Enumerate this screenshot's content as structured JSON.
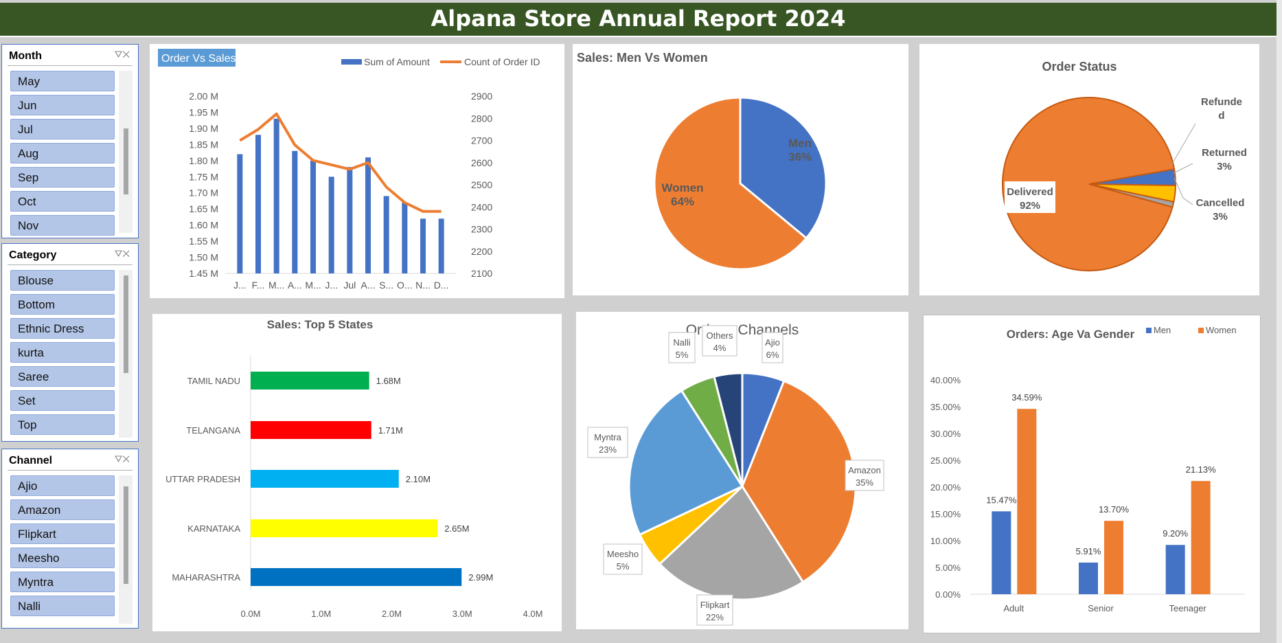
{
  "title": "Alpana Store Annual Report 2024",
  "slicers": [
    {
      "name": "Month",
      "items": [
        "May",
        "Jun",
        "Jul",
        "Aug",
        "Sep",
        "Oct",
        "Nov"
      ]
    },
    {
      "name": "Category",
      "items": [
        "Blouse",
        "Bottom",
        "Ethnic Dress",
        "kurta",
        "Saree",
        "Set",
        "Top"
      ]
    },
    {
      "name": "Channel",
      "items": [
        "Ajio",
        "Amazon",
        "Flipkart",
        "Meesho",
        "Myntra",
        "Nalli",
        ""
      ]
    }
  ],
  "chart_data": [
    {
      "id": "order_vs_sales",
      "type": "bar",
      "title": "Order Vs Sales",
      "categories": [
        "J...",
        "F...",
        "M...",
        "A...",
        "M...",
        "J...",
        "Jul",
        "A...",
        "S...",
        "O...",
        "N...",
        "D..."
      ],
      "series": [
        {
          "name": "Sum of Amount",
          "kind": "bar",
          "axis": "left",
          "color": "#4472c4",
          "values": [
            1.82,
            1.88,
            1.93,
            1.83,
            1.8,
            1.75,
            1.78,
            1.81,
            1.69,
            1.67,
            1.62,
            1.62
          ]
        },
        {
          "name": "Count of Order ID",
          "kind": "line",
          "axis": "right",
          "color": "#ed7d31",
          "values": [
            2700,
            2750,
            2820,
            2680,
            2610,
            2590,
            2570,
            2600,
            2490,
            2420,
            2380,
            2380
          ]
        }
      ],
      "left_ticks": [
        "2.00 M",
        "1.95 M",
        "1.90 M",
        "1.85 M",
        "1.80 M",
        "1.75 M",
        "1.70 M",
        "1.65 M",
        "1.60 M",
        "1.55 M",
        "1.50 M",
        "1.45 M"
      ],
      "right_ticks": [
        "2900",
        "2800",
        "2700",
        "2600",
        "2500",
        "2400",
        "2300",
        "2200",
        "2100"
      ],
      "ylim_left": [
        1.45,
        2.0
      ],
      "ylim_right": [
        2100,
        2900
      ],
      "legend": "top-right"
    },
    {
      "id": "men_vs_women",
      "type": "pie",
      "title": "Sales: Men Vs Women",
      "slices": [
        {
          "label": "Men",
          "percent": "36%",
          "value": 36,
          "color": "#4472c4"
        },
        {
          "label": "Women",
          "percent": "64%",
          "value": 64,
          "color": "#ed7d31"
        }
      ]
    },
    {
      "id": "order_status",
      "type": "pie",
      "title": "Order Status",
      "slices": [
        {
          "label": "Cancelled",
          "percent": "3%",
          "value": 3,
          "color": "#4472c4"
        },
        {
          "label": "Returned",
          "percent": "3%",
          "value": 3,
          "color": "#ffc000"
        },
        {
          "label": "Refunded",
          "display": "Refunde d",
          "percent": "",
          "value": 1,
          "color": "#a5a5a5"
        },
        {
          "label": "Delivered",
          "percent": "92%",
          "value": 92,
          "color": "#ed7d31"
        }
      ]
    },
    {
      "id": "top5_states",
      "type": "bar",
      "orientation": "horizontal",
      "title": "Sales: Top 5 States",
      "categories": [
        "TAMIL NADU",
        "TELANGANA",
        "UTTAR PRADESH",
        "KARNATAKA",
        "MAHARASHTRA"
      ],
      "values": [
        1.68,
        1.71,
        2.1,
        2.65,
        2.99
      ],
      "value_labels": [
        "1.68M",
        "1.71M",
        "2.10M",
        "2.65M",
        "2.99M"
      ],
      "colors": [
        "#00b050",
        "#ff0000",
        "#00b0f0",
        "#ffff00",
        "#0070c0"
      ],
      "xlim": [
        0,
        4
      ],
      "x_ticks": [
        "0.0M",
        "1.0M",
        "2.0M",
        "3.0M",
        "4.0M"
      ]
    },
    {
      "id": "channels",
      "type": "pie",
      "title": "Orders: Channels",
      "slices": [
        {
          "label": "Ajio",
          "percent": "6%",
          "value": 6,
          "color": "#4472c4"
        },
        {
          "label": "Amazon",
          "percent": "35%",
          "value": 35,
          "color": "#ed7d31"
        },
        {
          "label": "Flipkart",
          "percent": "22%",
          "value": 22,
          "color": "#a5a5a5"
        },
        {
          "label": "Meesho",
          "percent": "5%",
          "value": 5,
          "color": "#ffc000"
        },
        {
          "label": "Myntra",
          "percent": "23%",
          "value": 23,
          "color": "#5b9bd5"
        },
        {
          "label": "Nalli",
          "percent": "5%",
          "value": 5,
          "color": "#70ad47"
        },
        {
          "label": "Others",
          "percent": "4%",
          "value": 4,
          "color": "#264478"
        }
      ]
    },
    {
      "id": "age_gender",
      "type": "bar",
      "title": "Orders: Age Va Gender",
      "categories": [
        "Adult",
        "Senior",
        "Teenager"
      ],
      "series": [
        {
          "name": "Men",
          "color": "#4472c4",
          "values": [
            15.47,
            5.91,
            9.2
          ],
          "labels": [
            "15.47%",
            "5.91%",
            "9.20%"
          ]
        },
        {
          "name": "Women",
          "color": "#ed7d31",
          "values": [
            34.59,
            13.7,
            21.13
          ],
          "labels": [
            "34.59%",
            "13.70%",
            "21.13%"
          ]
        }
      ],
      "y_ticks": [
        "40.00%",
        "35.00%",
        "30.00%",
        "25.00%",
        "20.00%",
        "15.00%",
        "10.00%",
        "5.00%",
        "0.00%"
      ],
      "ylim": [
        0,
        40
      ],
      "legend": "top-right"
    }
  ]
}
